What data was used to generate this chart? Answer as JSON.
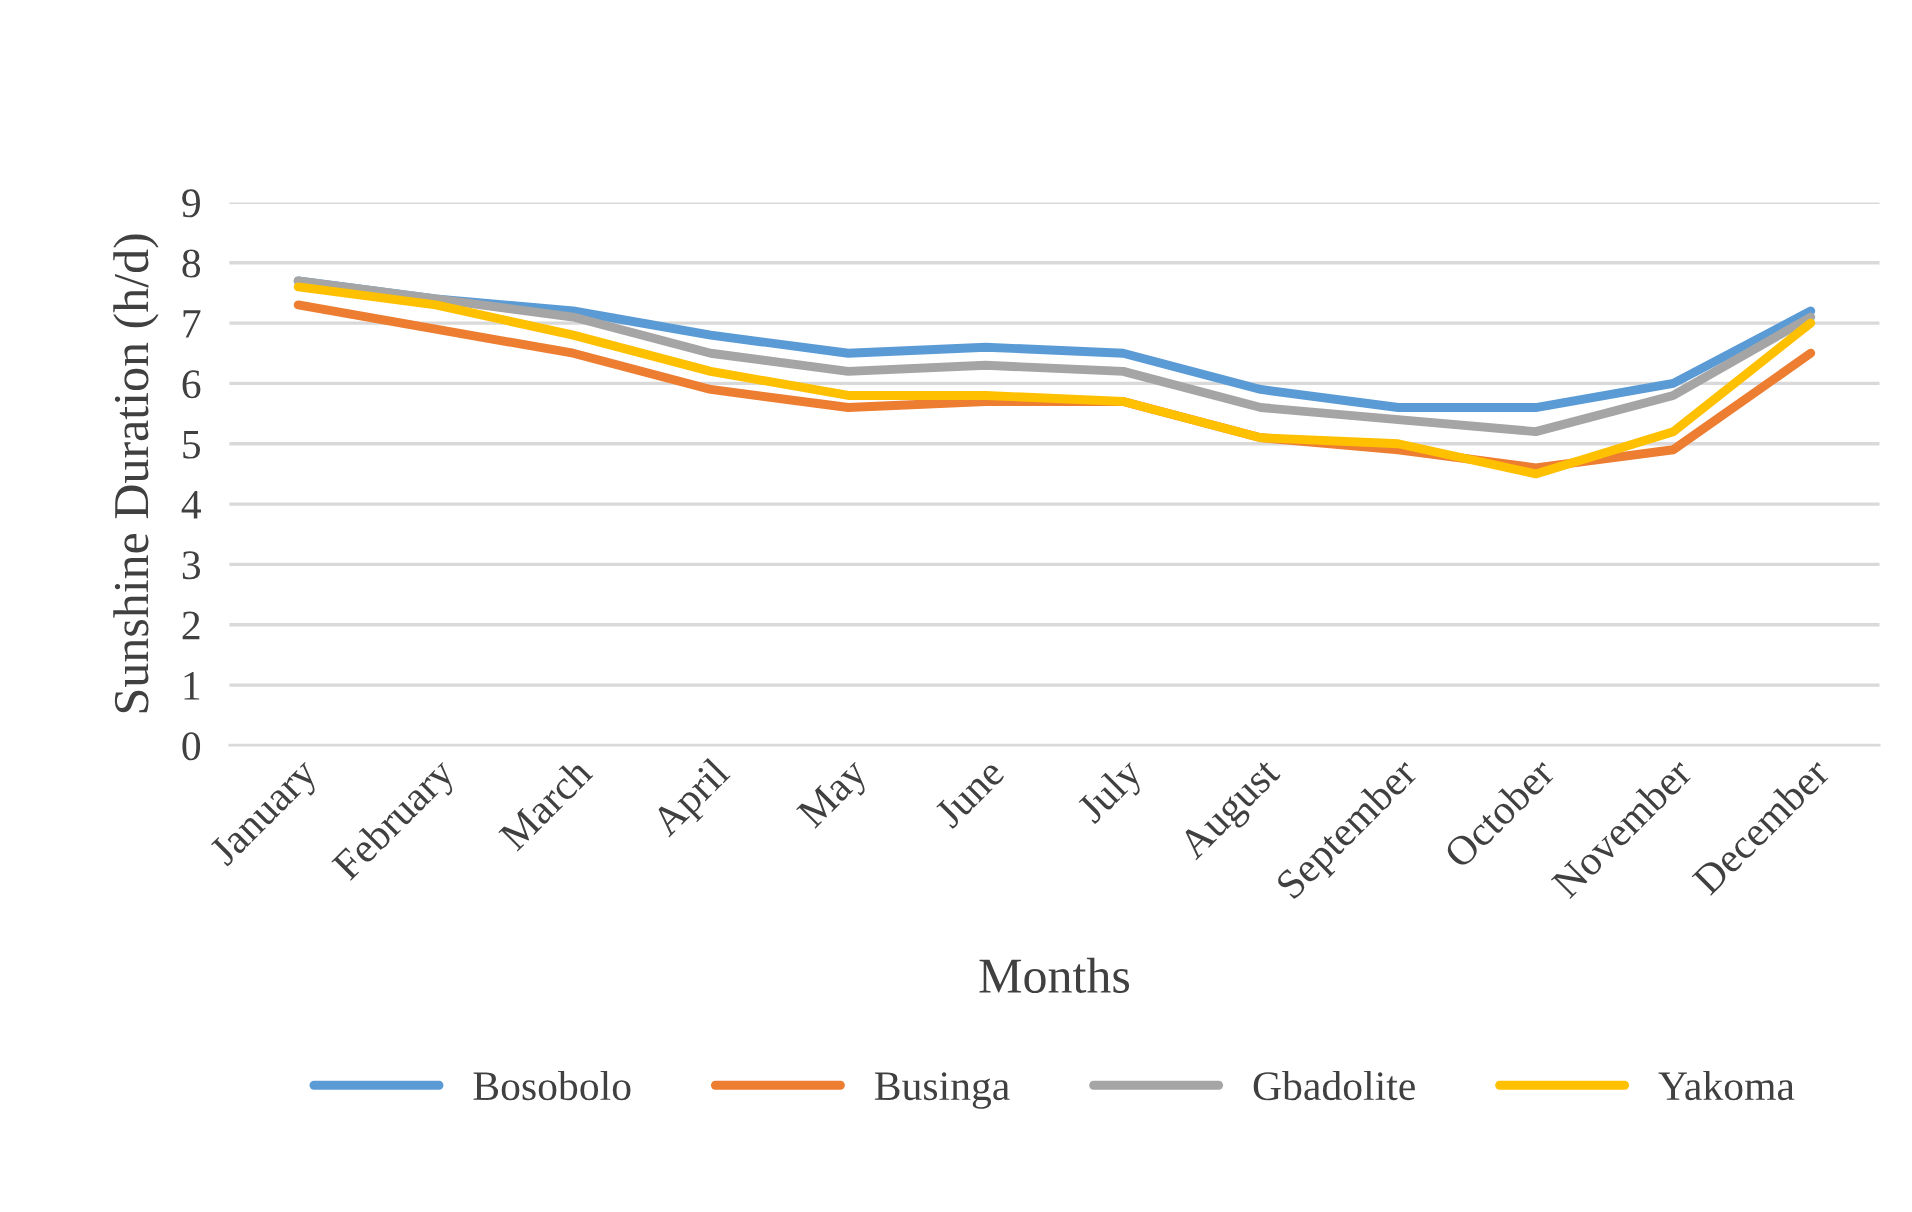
{
  "chart_data": {
    "type": "line",
    "xlabel": "Months",
    "ylabel": "Sunshine Duration (h/d)",
    "categories": [
      "January",
      "February",
      "March",
      "April",
      "May",
      "June",
      "July",
      "August",
      "September",
      "October",
      "November",
      "December"
    ],
    "series": [
      {
        "name": "Bosobolo",
        "color": "#5b9bd5",
        "values": [
          7.7,
          7.4,
          7.2,
          6.8,
          6.5,
          6.6,
          6.5,
          5.9,
          5.6,
          5.6,
          6.0,
          7.2
        ]
      },
      {
        "name": "Businga",
        "color": "#ed7d31",
        "values": [
          7.3,
          6.9,
          6.5,
          5.9,
          5.6,
          5.7,
          5.7,
          5.1,
          4.9,
          4.6,
          4.9,
          6.5
        ]
      },
      {
        "name": "Gbadolite",
        "color": "#a5a5a5",
        "values": [
          7.7,
          7.4,
          7.1,
          6.5,
          6.2,
          6.3,
          6.2,
          5.6,
          5.4,
          5.2,
          5.8,
          7.1
        ]
      },
      {
        "name": "Yakoma",
        "color": "#ffc000",
        "values": [
          7.6,
          7.3,
          6.8,
          6.2,
          5.8,
          5.8,
          5.7,
          5.1,
          5.0,
          4.5,
          5.2,
          7.0
        ]
      }
    ],
    "ylim": [
      0,
      9
    ],
    "yticks": [
      0,
      1,
      2,
      3,
      4,
      5,
      6,
      7,
      8,
      9
    ],
    "grid": "y",
    "legend": "bottom",
    "marker": "none",
    "line_style": "solid"
  }
}
